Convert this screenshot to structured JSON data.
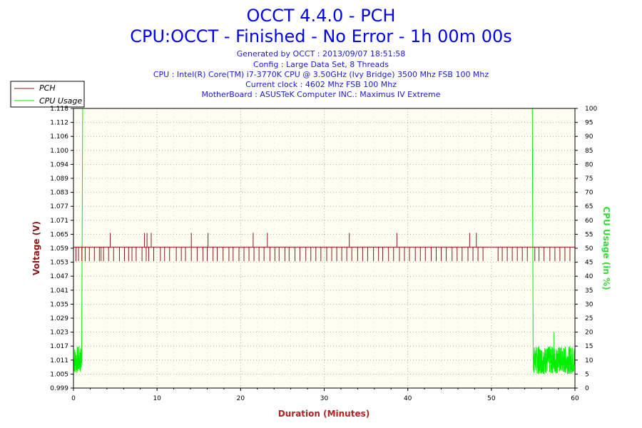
{
  "chart_data": {
    "type": "line",
    "title": "OCCT 4.4.0 - PCH",
    "subtitle": "CPU:OCCT - Finished - No Error - 1h 00m 00s",
    "info_lines": [
      "Generated by OCCT : 2013/09/07 18:51:58",
      "Config : Large Data Set, 8 Threads",
      "CPU : Intel(R) Core(TM) i7-3770K CPU @ 3.50GHz (Ivy Bridge) 3500 Mhz FSB 100 Mhz",
      "Current clock : 4602 Mhz FSB 100 Mhz",
      "MotherBoard : ASUSTeK Computer INC.: Maximus IV Extreme"
    ],
    "xlabel": "Duration (Minutes)",
    "ylabel": "Voltage (V)",
    "y2label": "CPU Usage (in %)",
    "xlim": [
      0,
      60
    ],
    "ylim": [
      0.999,
      1.118
    ],
    "y2lim": [
      0,
      100
    ],
    "x_ticks": [
      0,
      10,
      20,
      30,
      40,
      50,
      60
    ],
    "y_tick_labels": [
      "0.999",
      "1.005",
      "1.011",
      "1.017",
      "1.023",
      "1.029",
      "1.035",
      "1.041",
      "1.047",
      "1.053",
      "1.059",
      "1.065",
      "1.071",
      "1.077",
      "1.083",
      "1.089",
      "1.094",
      "1.100",
      "1.106",
      "1.112",
      "1.118"
    ],
    "y2_ticks": [
      0,
      5,
      10,
      15,
      20,
      25,
      30,
      35,
      40,
      45,
      50,
      55,
      60,
      65,
      70,
      75,
      80,
      85,
      90,
      95,
      100
    ],
    "grid": true,
    "legend_position": "top-left",
    "series": [
      {
        "name": "PCH",
        "color": "#8b1a1a",
        "baseline": 1.059,
        "dips_to": 1.053,
        "dip_minutes": [
          0.3,
          0.6,
          1.0,
          1.4,
          1.9,
          2.5,
          3.1,
          3.3,
          3.6,
          4.2,
          4.8,
          5.5,
          6.1,
          6.6,
          7.0,
          7.5,
          8.2,
          8.7,
          9.0,
          9.6,
          10.4,
          10.9,
          11.5,
          12.3,
          12.9,
          13.4,
          14.1,
          14.8,
          15.5,
          16.0,
          16.7,
          17.2,
          17.9,
          18.6,
          19.1,
          19.8,
          20.4,
          21.0,
          21.6,
          22.2,
          22.8,
          23.5,
          24.1,
          24.6,
          25.3,
          25.8,
          26.5,
          27.1,
          27.8,
          28.4,
          29.0,
          29.6,
          30.3,
          30.9,
          31.5,
          32.1,
          32.7,
          33.3,
          34.0,
          34.6,
          35.2,
          35.9,
          36.5,
          37.0,
          37.7,
          38.3,
          39.0,
          39.6,
          40.2,
          40.9,
          41.5,
          42.1,
          42.8,
          43.4,
          44.0,
          44.6,
          45.3,
          45.9,
          46.5,
          47.2,
          47.8,
          48.4,
          49.0,
          50.8,
          51.3,
          51.9,
          52.5,
          53.1,
          53.7,
          54.3,
          55.2,
          55.7,
          56.3,
          57.0,
          57.6,
          58.2,
          58.8,
          59.4
        ],
        "spike_minutes": [
          4.4,
          8.5,
          8.8,
          9.3,
          14.1,
          16.1,
          21.5,
          23.2,
          33.0,
          38.7,
          47.4,
          48.2
        ],
        "spike_to": 1.065
      },
      {
        "name": "CPU Usage",
        "color": "#00ee00",
        "axis": "right",
        "x": [
          0,
          1.0,
          1.1,
          54.9,
          55.0,
          60
        ],
        "y": [
          10,
          10,
          100,
          100,
          10,
          10
        ],
        "idle_band": [
          5,
          15
        ]
      }
    ]
  }
}
